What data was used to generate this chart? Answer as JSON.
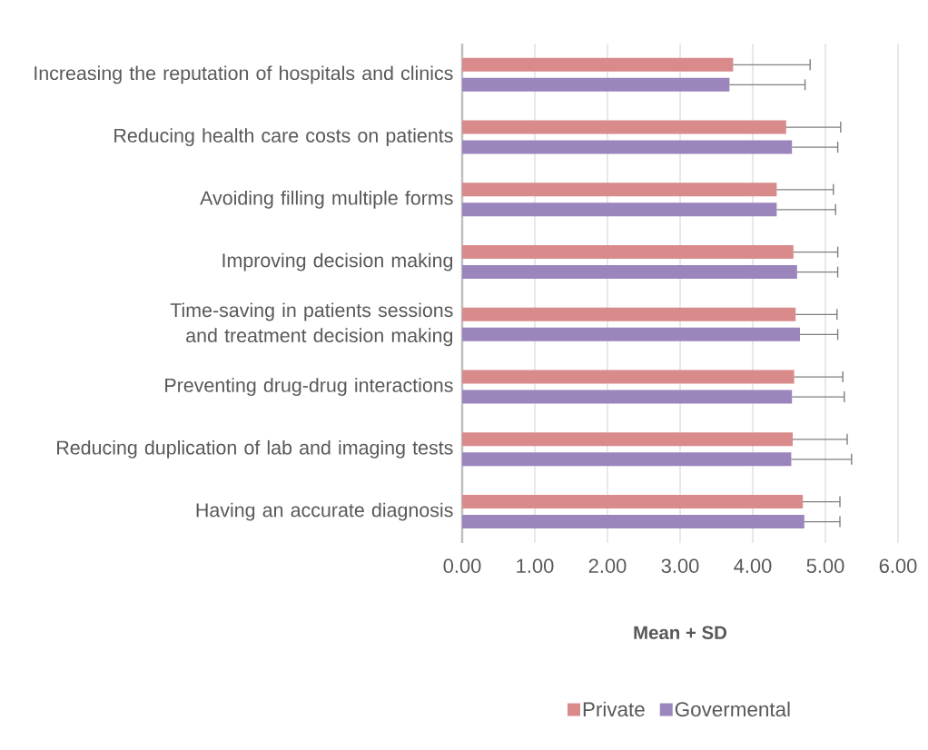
{
  "chart_data": {
    "type": "bar",
    "orientation": "horizontal",
    "xlabel": "Mean + SD",
    "categories": [
      "Increasing the reputation of hospitals and clinics",
      "Reducing health care costs on patients",
      "Avoiding filling multiple forms",
      "Improving decision making",
      "Time-saving in patients sessions and treatment decision making",
      "Preventing drug-drug interactions",
      "Reducing duplication of lab and imaging tests",
      "Having an accurate diagnosis"
    ],
    "series": [
      {
        "name": "Private",
        "color": "#d98a8a",
        "values": [
          3.73,
          4.46,
          4.33,
          4.56,
          4.59,
          4.57,
          4.55,
          4.69
        ],
        "errors": [
          [
            3.73,
            4.79
          ],
          [
            4.46,
            5.21
          ],
          [
            4.33,
            5.11
          ],
          [
            4.56,
            5.17
          ],
          [
            4.59,
            5.16
          ],
          [
            4.57,
            5.24
          ],
          [
            4.55,
            5.3
          ],
          [
            4.69,
            5.2
          ]
        ]
      },
      {
        "name": "Govermental",
        "color": "#9b85bd",
        "values": [
          3.68,
          4.54,
          4.33,
          4.61,
          4.65,
          4.54,
          4.53,
          4.71
        ],
        "errors": [
          [
            3.68,
            4.72
          ],
          [
            4.54,
            5.17
          ],
          [
            4.33,
            5.14
          ],
          [
            4.61,
            5.17
          ],
          [
            4.65,
            5.17
          ],
          [
            4.54,
            5.26
          ],
          [
            4.53,
            5.36
          ],
          [
            4.71,
            5.2
          ]
        ]
      }
    ],
    "xlim": [
      0,
      6
    ],
    "xticks": [
      {
        "value": 0,
        "label": "0.00"
      },
      {
        "value": 1,
        "label": "1.00"
      },
      {
        "value": 2,
        "label": "2.00"
      },
      {
        "value": 3,
        "label": "3.00"
      },
      {
        "value": 4,
        "label": "4.00"
      },
      {
        "value": 5,
        "label": "5.00"
      },
      {
        "value": 6,
        "label": "6.00"
      }
    ],
    "grid": "x",
    "legend": "bottom"
  }
}
